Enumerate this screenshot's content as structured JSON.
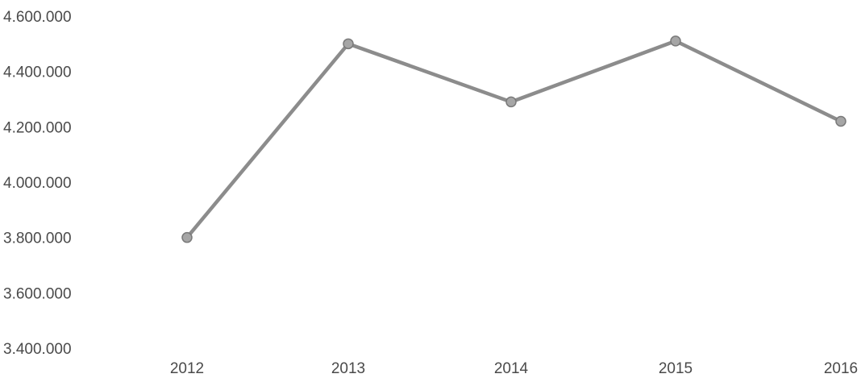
{
  "chart_data": {
    "type": "line",
    "title": "",
    "xlabel": "",
    "ylabel": "",
    "categories": [
      "2012",
      "2013",
      "2014",
      "2015",
      "2016"
    ],
    "series": [
      {
        "values": [
          3800000,
          4500000,
          4290000,
          4510000,
          4220000
        ]
      }
    ],
    "yticks": [
      "3.400.000",
      "3.600.000",
      "3.800.000",
      "4.000.000",
      "4.200.000",
      "4.400.000",
      "4.600.000"
    ],
    "ylim": [
      3400000,
      4600000
    ],
    "grid": false,
    "legend": "none",
    "line_color": "#8c8c8c",
    "point_color": "#a6a6a6"
  }
}
